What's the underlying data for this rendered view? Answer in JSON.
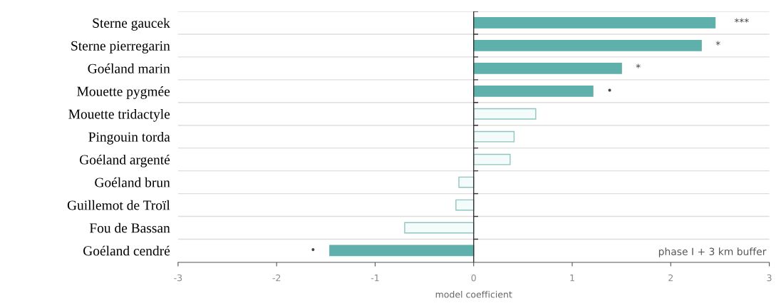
{
  "chart_data": {
    "type": "bar",
    "orientation": "horizontal",
    "xlabel": "model coefficient",
    "categories": [
      "Sterne gaucek",
      "Sterne pierregarin",
      "Goéland marin",
      "Mouette pygmée",
      "Mouette tridactyle",
      "Pingouin torda",
      "Goéland argenté",
      "Goéland brun",
      "Guillemot de Troïl",
      "Fou de Bassan",
      "Goéland cendré"
    ],
    "values": [
      2.45,
      2.31,
      1.5,
      1.21,
      0.63,
      0.41,
      0.37,
      -0.15,
      -0.18,
      -0.7,
      -1.46
    ],
    "colors": [
      "#5fb0aa",
      "#5fb0aa",
      "#5fb0aa",
      "#5fb0aa",
      "#f4fbfb",
      "#f4fbfb",
      "#f4fbfb",
      "#f4fbfb",
      "#f4fbfb",
      "#f4fbfb",
      "#5fb0aa"
    ],
    "xlim": [
      -3,
      3
    ],
    "xticks": [
      -3,
      -2,
      -1,
      0,
      1,
      2,
      3
    ],
    "grid": "y",
    "ref_lines": [
      {
        "axis": "x",
        "value": 0,
        "color": "#333333"
      }
    ],
    "value_labels": [
      "***",
      "*",
      "*",
      "•",
      null,
      null,
      null,
      null,
      null,
      null,
      "•"
    ],
    "annotations": [
      "phase I + 3 km buffer"
    ]
  }
}
